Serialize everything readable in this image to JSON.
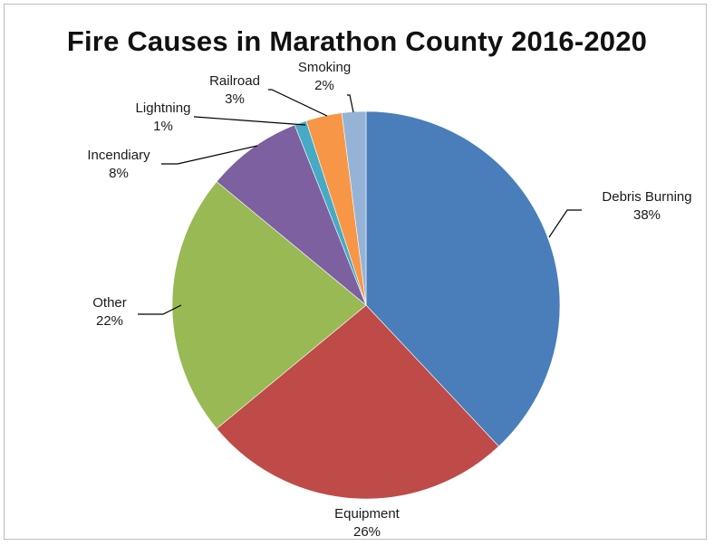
{
  "chart_data": {
    "type": "pie",
    "title": "Fire Causes in Marathon County 2016-2020",
    "legend": "none",
    "slices": [
      {
        "label": "Debris Burning",
        "value": 38,
        "value_label": "38%",
        "color": "#4A7EBB"
      },
      {
        "label": "Equipment",
        "value": 26,
        "value_label": "26%",
        "color": "#BE4B48"
      },
      {
        "label": "Other",
        "value": 22,
        "value_label": "22%",
        "color": "#98B954"
      },
      {
        "label": "Incendiary",
        "value": 8,
        "value_label": "8%",
        "color": "#7D60A0"
      },
      {
        "label": "Lightning",
        "value": 1,
        "value_label": "1%",
        "color": "#46AAC5"
      },
      {
        "label": "Railroad",
        "value": 3,
        "value_label": "3%",
        "color": "#F79646"
      },
      {
        "label": "Smoking",
        "value": 2,
        "value_label": "2%",
        "color": "#95B3D7"
      }
    ]
  }
}
